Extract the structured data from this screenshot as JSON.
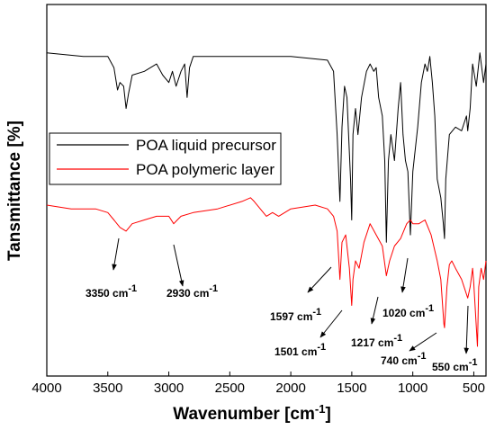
{
  "chart_data": {
    "type": "line",
    "xlabel": "Wavenumber [cm",
    "xlabel_sup": "-1",
    "xlabel_end": "]",
    "ylabel": "Tansmittance [%]",
    "xlim": [
      4000,
      400
    ],
    "ylim": [
      0,
      100
    ],
    "xticks": [
      4000,
      3500,
      3000,
      2500,
      2000,
      1500,
      1000,
      500
    ],
    "legend": "upper left",
    "series": [
      {
        "name": "POA liquid precursor",
        "color": "#000000",
        "x": [
          4000,
          3700,
          3500,
          3450,
          3420,
          3400,
          3370,
          3350,
          3330,
          3300,
          3200,
          3100,
          3050,
          3000,
          2970,
          2940,
          2900,
          2870,
          2850,
          2830,
          2800,
          2500,
          2000,
          1700,
          1650,
          1620,
          1597,
          1580,
          1560,
          1540,
          1510,
          1501,
          1490,
          1470,
          1450,
          1420,
          1380,
          1350,
          1320,
          1300,
          1280,
          1250,
          1230,
          1217,
          1200,
          1180,
          1150,
          1120,
          1100,
          1080,
          1060,
          1040,
          1020,
          1000,
          960,
          930,
          900,
          880,
          860,
          840,
          820,
          800,
          770,
          750,
          740,
          730,
          700,
          650,
          600,
          560,
          550,
          530,
          510,
          480,
          450,
          420,
          400
        ],
        "values": [
          87,
          86,
          86,
          83,
          77,
          79,
          78,
          72,
          76,
          81,
          82,
          84,
          81,
          79,
          82,
          78,
          82,
          84,
          75,
          83,
          86,
          86,
          86,
          85,
          82,
          65,
          47,
          67,
          78,
          75,
          53,
          42,
          65,
          72,
          65,
          75,
          82,
          84,
          82,
          83,
          75,
          70,
          58,
          36,
          58,
          65,
          58,
          72,
          79,
          65,
          58,
          55,
          38,
          55,
          67,
          79,
          84,
          82,
          86,
          79,
          70,
          53,
          48,
          41,
          37,
          53,
          65,
          67,
          66,
          70,
          66,
          72,
          84,
          78,
          87,
          79,
          84
        ]
      },
      {
        "name": "POA polymeric layer",
        "color": "#ff0000",
        "x": [
          4000,
          3800,
          3600,
          3500,
          3450,
          3400,
          3350,
          3300,
          3200,
          3100,
          3000,
          2960,
          2930,
          2900,
          2800,
          2600,
          2400,
          2330,
          2300,
          2200,
          2150,
          2100,
          2000,
          1800,
          1700,
          1650,
          1620,
          1597,
          1580,
          1550,
          1520,
          1501,
          1490,
          1470,
          1440,
          1400,
          1350,
          1300,
          1250,
          1217,
          1190,
          1150,
          1100,
          1050,
          1020,
          1000,
          950,
          900,
          850,
          800,
          770,
          745,
          740,
          720,
          700,
          680,
          650,
          600,
          550,
          530,
          510,
          500,
          470,
          460,
          440,
          420,
          400
        ],
        "values": [
          46,
          45,
          45,
          44,
          42,
          40,
          39,
          41,
          42,
          43,
          43,
          41,
          42,
          43,
          44,
          45,
          47,
          48,
          47,
          43,
          44,
          43,
          45,
          46,
          45,
          43,
          39,
          26,
          36,
          38,
          29,
          19,
          26,
          31,
          29,
          36,
          41,
          38,
          35,
          27,
          31,
          35,
          37,
          41,
          42,
          41,
          41,
          42,
          38,
          31,
          26,
          14,
          13,
          24,
          30,
          31,
          29,
          26,
          21,
          24,
          29,
          25,
          8,
          24,
          29,
          26,
          31
        ]
      }
    ],
    "annotations": [
      {
        "text": "3350 cm",
        "sup": "-1"
      },
      {
        "text": "2930 cm",
        "sup": "-1"
      },
      {
        "text": "1597 cm",
        "sup": "-1"
      },
      {
        "text": "1501 cm",
        "sup": "-1"
      },
      {
        "text": "1217 cm",
        "sup": "-1"
      },
      {
        "text": "1020 cm",
        "sup": "-1"
      },
      {
        "text": "740 cm",
        "sup": "-1"
      },
      {
        "text": "550 cm",
        "sup": "-1"
      }
    ]
  }
}
